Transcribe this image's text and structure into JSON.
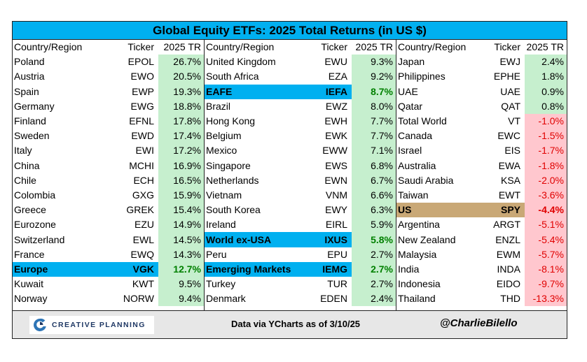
{
  "chart_data": {
    "type": "table",
    "title": "Global Equity ETFs: 2025 Total Returns (in US $)",
    "columns": [
      "Country/Region",
      "Ticker",
      "2025 TR"
    ],
    "tables": [
      {
        "header": [
          "Country/Region",
          "Ticker",
          "2025 TR"
        ],
        "rows": [
          {
            "country": "Poland",
            "ticker": "EPOL",
            "tr": "26.7%",
            "value": 26.7,
            "highlight": ""
          },
          {
            "country": "Austria",
            "ticker": "EWO",
            "tr": "20.5%",
            "value": 20.5,
            "highlight": ""
          },
          {
            "country": "Spain",
            "ticker": "EWP",
            "tr": "19.3%",
            "value": 19.3,
            "highlight": ""
          },
          {
            "country": "Germany",
            "ticker": "EWG",
            "tr": "18.8%",
            "value": 18.8,
            "highlight": ""
          },
          {
            "country": "Finland",
            "ticker": "EFNL",
            "tr": "17.8%",
            "value": 17.8,
            "highlight": ""
          },
          {
            "country": "Sweden",
            "ticker": "EWD",
            "tr": "17.4%",
            "value": 17.4,
            "highlight": ""
          },
          {
            "country": "Italy",
            "ticker": "EWI",
            "tr": "17.2%",
            "value": 17.2,
            "highlight": ""
          },
          {
            "country": "China",
            "ticker": "MCHI",
            "tr": "16.9%",
            "value": 16.9,
            "highlight": ""
          },
          {
            "country": "Chile",
            "ticker": "ECH",
            "tr": "16.5%",
            "value": 16.5,
            "highlight": ""
          },
          {
            "country": "Colombia",
            "ticker": "GXG",
            "tr": "15.9%",
            "value": 15.9,
            "highlight": ""
          },
          {
            "country": "Greece",
            "ticker": "GREK",
            "tr": "15.4%",
            "value": 15.4,
            "highlight": ""
          },
          {
            "country": "Eurozone",
            "ticker": "EZU",
            "tr": "14.9%",
            "value": 14.9,
            "highlight": ""
          },
          {
            "country": "Switzerland",
            "ticker": "EWL",
            "tr": "14.5%",
            "value": 14.5,
            "highlight": ""
          },
          {
            "country": "France",
            "ticker": "EWQ",
            "tr": "14.3%",
            "value": 14.3,
            "highlight": ""
          },
          {
            "country": "Europe",
            "ticker": "VGK",
            "tr": "12.7%",
            "value": 12.7,
            "highlight": "blue"
          },
          {
            "country": "Kuwait",
            "ticker": "KWT",
            "tr": "9.5%",
            "value": 9.5,
            "highlight": ""
          },
          {
            "country": "Norway",
            "ticker": "NORW",
            "tr": "9.4%",
            "value": 9.4,
            "highlight": ""
          }
        ]
      },
      {
        "header": [
          "Country/Region",
          "Ticker",
          "2025 TR"
        ],
        "rows": [
          {
            "country": "United Kingdom",
            "ticker": "EWU",
            "tr": "9.3%",
            "value": 9.3,
            "highlight": ""
          },
          {
            "country": "South Africa",
            "ticker": "EZA",
            "tr": "9.2%",
            "value": 9.2,
            "highlight": ""
          },
          {
            "country": "EAFE",
            "ticker": "IEFA",
            "tr": "8.7%",
            "value": 8.7,
            "highlight": "blue"
          },
          {
            "country": "Brazil",
            "ticker": "EWZ",
            "tr": "8.0%",
            "value": 8.0,
            "highlight": ""
          },
          {
            "country": "Hong Kong",
            "ticker": "EWH",
            "tr": "7.7%",
            "value": 7.7,
            "highlight": ""
          },
          {
            "country": "Belgium",
            "ticker": "EWK",
            "tr": "7.7%",
            "value": 7.7,
            "highlight": ""
          },
          {
            "country": "Mexico",
            "ticker": "EWW",
            "tr": "7.1%",
            "value": 7.1,
            "highlight": ""
          },
          {
            "country": "Singapore",
            "ticker": "EWS",
            "tr": "6.8%",
            "value": 6.8,
            "highlight": ""
          },
          {
            "country": "Netherlands",
            "ticker": "EWN",
            "tr": "6.7%",
            "value": 6.7,
            "highlight": ""
          },
          {
            "country": "Vietnam",
            "ticker": "VNM",
            "tr": "6.6%",
            "value": 6.6,
            "highlight": ""
          },
          {
            "country": "South Korea",
            "ticker": "EWY",
            "tr": "6.3%",
            "value": 6.3,
            "highlight": ""
          },
          {
            "country": "Ireland",
            "ticker": "EIRL",
            "tr": "5.9%",
            "value": 5.9,
            "highlight": ""
          },
          {
            "country": "World ex-USA",
            "ticker": "IXUS",
            "tr": "5.8%",
            "value": 5.8,
            "highlight": "blue"
          },
          {
            "country": "Peru",
            "ticker": "EPU",
            "tr": "2.7%",
            "value": 2.7,
            "highlight": ""
          },
          {
            "country": "Emerging Markets",
            "ticker": "IEMG",
            "tr": "2.7%",
            "value": 2.7,
            "highlight": "blue"
          },
          {
            "country": "Turkey",
            "ticker": "TUR",
            "tr": "2.7%",
            "value": 2.7,
            "highlight": ""
          },
          {
            "country": "Denmark",
            "ticker": "EDEN",
            "tr": "2.4%",
            "value": 2.4,
            "highlight": ""
          }
        ]
      },
      {
        "header": [
          "Country/Region",
          "Ticker",
          "2025 TR"
        ],
        "rows": [
          {
            "country": "Japan",
            "ticker": "EWJ",
            "tr": "2.4%",
            "value": 2.4,
            "highlight": ""
          },
          {
            "country": "Philippines",
            "ticker": "EPHE",
            "tr": "1.8%",
            "value": 1.8,
            "highlight": ""
          },
          {
            "country": "UAE",
            "ticker": "UAE",
            "tr": "0.9%",
            "value": 0.9,
            "highlight": ""
          },
          {
            "country": "Qatar",
            "ticker": "QAT",
            "tr": "0.8%",
            "value": 0.8,
            "highlight": ""
          },
          {
            "country": "Total World",
            "ticker": "VT",
            "tr": "-1.0%",
            "value": -1.0,
            "highlight": ""
          },
          {
            "country": "Canada",
            "ticker": "EWC",
            "tr": "-1.5%",
            "value": -1.5,
            "highlight": ""
          },
          {
            "country": "Israel",
            "ticker": "EIS",
            "tr": "-1.7%",
            "value": -1.7,
            "highlight": ""
          },
          {
            "country": "Australia",
            "ticker": "EWA",
            "tr": "-1.8%",
            "value": -1.8,
            "highlight": ""
          },
          {
            "country": "Saudi Arabia",
            "ticker": "KSA",
            "tr": "-2.0%",
            "value": -2.0,
            "highlight": ""
          },
          {
            "country": "Taiwan",
            "ticker": "EWT",
            "tr": "-3.6%",
            "value": -3.6,
            "highlight": ""
          },
          {
            "country": "US",
            "ticker": "SPY",
            "tr": "-4.4%",
            "value": -4.4,
            "highlight": "gold"
          },
          {
            "country": "Argentina",
            "ticker": "ARGT",
            "tr": "-5.1%",
            "value": -5.1,
            "highlight": ""
          },
          {
            "country": "New Zealand",
            "ticker": "ENZL",
            "tr": "-5.4%",
            "value": -5.4,
            "highlight": ""
          },
          {
            "country": "Malaysia",
            "ticker": "EWM",
            "tr": "-5.7%",
            "value": -5.7,
            "highlight": ""
          },
          {
            "country": "India",
            "ticker": "INDA",
            "tr": "-8.1%",
            "value": -8.1,
            "highlight": ""
          },
          {
            "country": "Indonesia",
            "ticker": "EIDO",
            "tr": "-9.7%",
            "value": -9.7,
            "highlight": ""
          },
          {
            "country": "Thailand",
            "ticker": "THD",
            "tr": "-13.3%",
            "value": -13.3,
            "highlight": ""
          }
        ]
      }
    ]
  },
  "footer": {
    "logo_text": "CREATIVE PLANNING",
    "source": "Data via YCharts as of 3/10/25",
    "handle": "@CharlieBilello"
  },
  "colors": {
    "title_bg": "#00b0f0",
    "positive_bg": "#c6efce",
    "negative_bg": "#ffc7ce",
    "highlight_blue": "#00b0f0",
    "highlight_gold": "#c9a876",
    "footer_bg": "#e7e7e7"
  }
}
